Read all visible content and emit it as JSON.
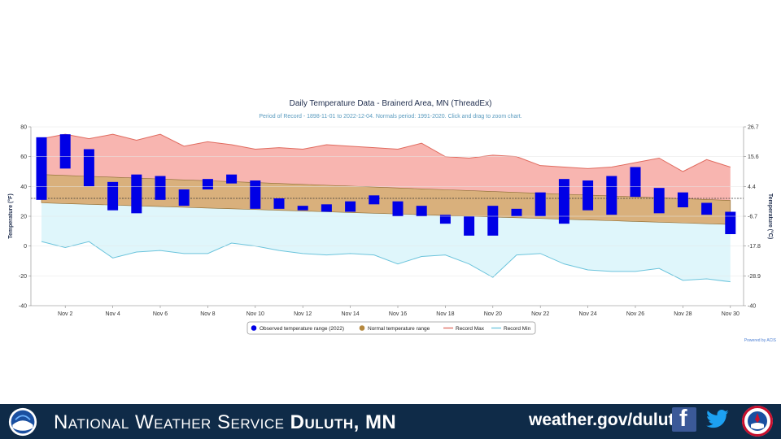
{
  "chart_data": {
    "type": "floating-bar-with-bands",
    "title": "Daily Temperature Data - Brainerd Area, MN (ThreadEx)",
    "subtitle": "Period of Record - 1898-11-01 to 2022-12-04. Normals period: 1991-2020. Click and drag to zoom chart.",
    "ylabel_left": "Temperature (°F)",
    "ylabel_right": "Temperature (°C)",
    "ylim": [
      -40,
      80
    ],
    "yticks_left": [
      "80",
      "60",
      "40",
      "20",
      "0",
      "-20",
      "-40"
    ],
    "yticks_left_values": [
      80,
      60,
      40,
      20,
      0,
      -20,
      -40
    ],
    "yticks_right": [
      "26.7",
      "15.6",
      "4.4",
      "-6.7",
      "-17.8",
      "-28.9",
      "-40"
    ],
    "x_days": [
      1,
      2,
      3,
      4,
      5,
      6,
      7,
      8,
      9,
      10,
      11,
      12,
      13,
      14,
      15,
      16,
      17,
      18,
      19,
      20,
      21,
      22,
      23,
      24,
      25,
      26,
      27,
      28,
      29,
      30
    ],
    "xtick_labels": [
      "Nov 2",
      "Nov 4",
      "Nov 6",
      "Nov 8",
      "Nov 10",
      "Nov 12",
      "Nov 14",
      "Nov 16",
      "Nov 18",
      "Nov 20",
      "Nov 22",
      "Nov 24",
      "Nov 26",
      "Nov 28",
      "Nov 30"
    ],
    "xtick_days": [
      2,
      4,
      6,
      8,
      10,
      12,
      14,
      16,
      18,
      20,
      22,
      24,
      26,
      28,
      30
    ],
    "observed_low": [
      31,
      52,
      40,
      24,
      22,
      31,
      27,
      38,
      42,
      25,
      25,
      24,
      23,
      23,
      28,
      20,
      20,
      15,
      7,
      7,
      20,
      20,
      15,
      24,
      21,
      33,
      22,
      26,
      21,
      8
    ],
    "observed_high": [
      73,
      75,
      65,
      43,
      48,
      47,
      38,
      45,
      48,
      44,
      32,
      27,
      28,
      30,
      34,
      30,
      27,
      21,
      20,
      27,
      25,
      36,
      45,
      44,
      47,
      53,
      39,
      36,
      29,
      23
    ],
    "normal_low": [
      29,
      28.5,
      28,
      27.5,
      27,
      26.5,
      26,
      25.5,
      25,
      24.5,
      24,
      23.5,
      23,
      22.5,
      22,
      21.5,
      21,
      20.5,
      20,
      19.5,
      19,
      18.5,
      18,
      17.5,
      17,
      16.5,
      16,
      15.5,
      15,
      14.5
    ],
    "normal_high": [
      48,
      47.4,
      46.8,
      46.2,
      45.6,
      45,
      44.4,
      43.8,
      43.2,
      42.6,
      42,
      41.4,
      40.8,
      40.2,
      39.6,
      39,
      38.4,
      37.8,
      37.2,
      36.6,
      36,
      35.4,
      34.8,
      34.2,
      33.6,
      33,
      32.4,
      31.8,
      31.2,
      30.6
    ],
    "record_max": [
      72,
      75,
      72,
      75,
      71,
      75,
      67,
      70,
      68,
      65,
      66,
      65,
      68,
      67,
      66,
      65,
      69,
      60,
      59,
      61,
      60,
      54,
      53,
      52,
      53,
      56,
      59,
      50,
      58,
      53
    ],
    "record_min": [
      3,
      -1,
      3,
      -8,
      -4,
      -3,
      -5,
      -5,
      2,
      0,
      -3,
      -5,
      -6,
      -5,
      -6,
      -12,
      -7,
      -6,
      -12,
      -21,
      -6,
      -5,
      -12,
      -16,
      -17,
      -17,
      -15,
      -23,
      -22,
      -24
    ],
    "freezing_line": 32,
    "legend": [
      {
        "label": "Observed temperature range (2022)",
        "color": "#0000e6"
      },
      {
        "label": "Normal temperature range",
        "color": "#b5883e"
      },
      {
        "label": "Record Max",
        "color": "#e06b5f"
      },
      {
        "label": "Record Min",
        "color": "#6cc4dc"
      }
    ],
    "colors": {
      "observed": "#0000e6",
      "normal_fill": "#d9b07c",
      "normal_edge": "#8a6a30",
      "record_max_fill": "#f8b5b0",
      "record_max_line": "#e06b5f",
      "record_min_fill": "#dff6fb",
      "record_min_line": "#6cc4dc"
    },
    "credit": "Powered by ACIS"
  },
  "footer": {
    "agency_prefix": "National Weather Service",
    "office": "Duluth, MN",
    "website": "weather.gov/duluth",
    "facebook_glyph": "f",
    "bg_color": "#0f2b48"
  }
}
